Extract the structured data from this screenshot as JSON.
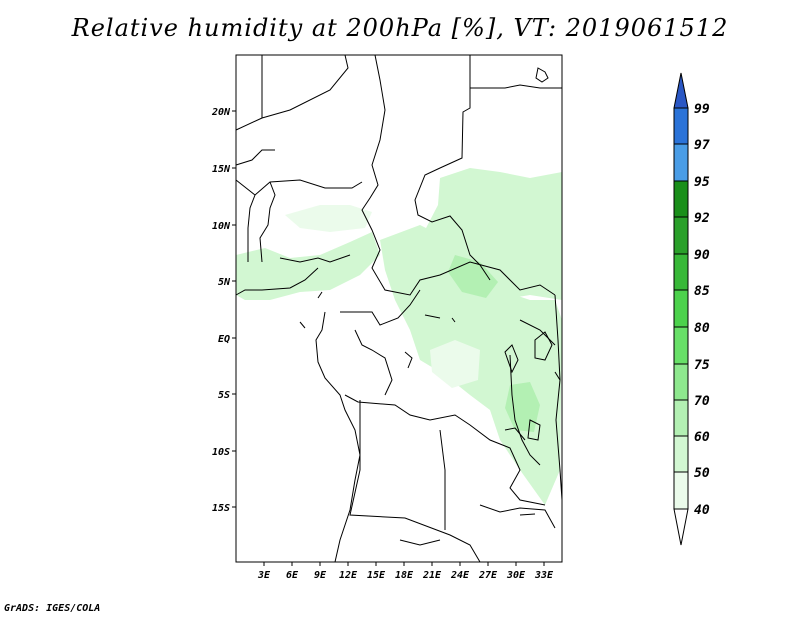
{
  "title": "Relative humidity at 200hPa [%], VT: 2019061512",
  "footer": "GrADS: IGES/COLA",
  "map": {
    "lon_range": [
      0,
      35
    ],
    "lat_range": [
      -20,
      25
    ],
    "lat_ticks": [
      "20N",
      "15N",
      "10N",
      "5N",
      "EQ",
      "5S",
      "10S",
      "15S"
    ],
    "lon_ticks": [
      "3E",
      "6E",
      "9E",
      "12E",
      "15E",
      "18E",
      "21E",
      "24E",
      "27E",
      "30E",
      "33E"
    ]
  },
  "colorbar": {
    "levels": [
      "99",
      "97",
      "95",
      "92",
      "90",
      "85",
      "80",
      "75",
      "70",
      "60",
      "50",
      "40"
    ],
    "colors": {
      "c95_97": "#4a9de6",
      "c97_99": "#2b73d8",
      "c99_up": "#2a57c4",
      "c92_95": "#1a8f1a",
      "c90_92": "#2aa02a",
      "c85_90": "#38b838",
      "c80_85": "#4cd24c",
      "c75_80": "#68e068",
      "c70_75": "#8ee88e",
      "c60_70": "#b3f0b3",
      "c50_60": "#d2f7d2",
      "c40_50": "#ebfbeb"
    }
  }
}
